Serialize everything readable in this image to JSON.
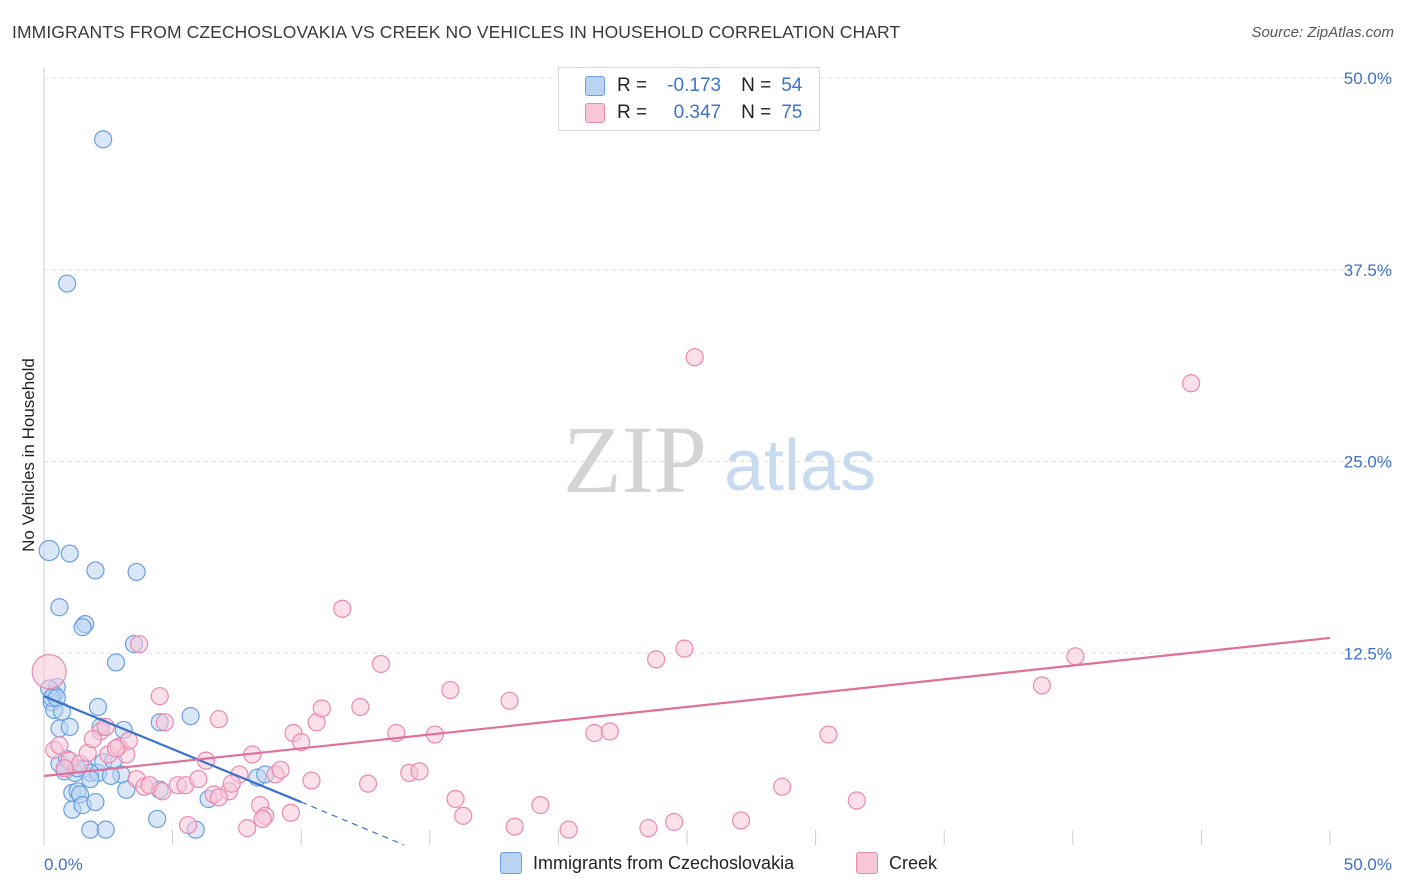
{
  "title": "IMMIGRANTS FROM CZECHOSLOVAKIA VS CREEK NO VEHICLES IN HOUSEHOLD CORRELATION CHART",
  "source": "Source: ZipAtlas.com",
  "watermark": {
    "zip": "ZIP",
    "atlas": "atlas"
  },
  "legend": {
    "r_label": "R =",
    "n_label": "N =",
    "rows": [
      {
        "r": "-0.173",
        "n": "54",
        "color": "#a9c8f0",
        "stroke": "#5b8fd6"
      },
      {
        "r": "0.347",
        "n": "75",
        "color": "#f7bcd0",
        "stroke": "#e07da0"
      }
    ]
  },
  "bottom_legend": [
    {
      "label": "Immigrants from Czechoslovakia"
    },
    {
      "label": "Creek"
    }
  ],
  "chart_data": {
    "type": "scatter",
    "title": "IMMIGRANTS FROM CZECHOSLOVAKIA VS CREEK NO VEHICLES IN HOUSEHOLD CORRELATION CHART",
    "xlabel": "",
    "ylabel": "No Vehicles in Household",
    "xlim": [
      0,
      50
    ],
    "ylim": [
      0,
      50
    ],
    "x_tick_labels": [
      "0.0%",
      "50.0%"
    ],
    "y_tick_labels": [
      "12.5%",
      "25.0%",
      "37.5%",
      "50.0%"
    ],
    "y_ticks": [
      12.5,
      25.0,
      37.5,
      50.0
    ],
    "grid": true,
    "series": [
      {
        "name": "Immigrants from Czechoslovakia",
        "color": "#6a9fe0",
        "fill": "#bad3f3",
        "trend": {
          "x": [
            0,
            10
          ],
          "y": [
            9.7,
            2.8
          ],
          "dashed_to": [
            14,
            0
          ]
        },
        "points": [
          [
            0.2,
            19.2
          ],
          [
            0.5,
            10.3
          ],
          [
            0.4,
            9.8
          ],
          [
            0.3,
            9.3
          ],
          [
            0.4,
            8.8
          ],
          [
            0.7,
            8.7
          ],
          [
            0.6,
            7.6
          ],
          [
            1.0,
            7.7
          ],
          [
            0.6,
            5.3
          ],
          [
            0.8,
            4.8
          ],
          [
            1.1,
            3.4
          ],
          [
            1.3,
            3.5
          ],
          [
            1.1,
            2.3
          ],
          [
            1.4,
            3.3
          ],
          [
            1.6,
            5.0
          ],
          [
            1.8,
            4.7
          ],
          [
            1.2,
            4.7
          ],
          [
            1.5,
            2.6
          ],
          [
            2.0,
            2.8
          ],
          [
            2.1,
            4.7
          ],
          [
            2.3,
            5.4
          ],
          [
            1.8,
            1.0
          ],
          [
            2.4,
            1.0
          ],
          [
            2.0,
            17.9
          ],
          [
            1.0,
            19.0
          ],
          [
            0.6,
            15.5
          ],
          [
            1.6,
            14.4
          ],
          [
            1.5,
            14.2
          ],
          [
            2.8,
            11.9
          ],
          [
            3.5,
            13.1
          ],
          [
            2.1,
            9.0
          ],
          [
            2.2,
            7.7
          ],
          [
            2.7,
            5.5
          ],
          [
            3.2,
            3.6
          ],
          [
            3.1,
            7.5
          ],
          [
            4.5,
            8.0
          ],
          [
            4.5,
            3.6
          ],
          [
            4.4,
            1.7
          ],
          [
            5.7,
            8.4
          ],
          [
            5.9,
            1.0
          ],
          [
            6.4,
            3.0
          ],
          [
            8.3,
            4.4
          ],
          [
            8.6,
            4.6
          ],
          [
            3.6,
            17.8
          ],
          [
            0.9,
            36.6
          ],
          [
            2.3,
            46.0
          ],
          [
            0.2,
            10.2
          ],
          [
            0.3,
            9.6
          ],
          [
            0.5,
            9.6
          ],
          [
            0.9,
            5.6
          ],
          [
            1.3,
            5.0
          ],
          [
            3.0,
            4.6
          ],
          [
            2.6,
            4.5
          ],
          [
            1.8,
            4.3
          ]
        ]
      },
      {
        "name": "Creek",
        "color": "#e98aae",
        "fill": "#f7c7d8",
        "trend": {
          "x": [
            0,
            50
          ],
          "y": [
            4.5,
            13.5
          ]
        },
        "points": [
          [
            0.2,
            11.3
          ],
          [
            0.4,
            6.2
          ],
          [
            0.6,
            6.5
          ],
          [
            1.0,
            5.5
          ],
          [
            1.4,
            5.3
          ],
          [
            1.7,
            6.0
          ],
          [
            2.2,
            7.4
          ],
          [
            2.5,
            5.9
          ],
          [
            2.9,
            6.4
          ],
          [
            3.2,
            5.9
          ],
          [
            3.6,
            4.3
          ],
          [
            3.9,
            3.8
          ],
          [
            3.3,
            6.8
          ],
          [
            4.1,
            3.9
          ],
          [
            4.5,
            9.7
          ],
          [
            4.6,
            3.5
          ],
          [
            4.7,
            8.0
          ],
          [
            5.2,
            3.9
          ],
          [
            5.5,
            3.9
          ],
          [
            6.0,
            4.3
          ],
          [
            6.3,
            5.5
          ],
          [
            6.6,
            3.3
          ],
          [
            6.8,
            8.2
          ],
          [
            7.2,
            3.5
          ],
          [
            7.6,
            4.6
          ],
          [
            7.9,
            1.1
          ],
          [
            8.1,
            5.9
          ],
          [
            8.4,
            2.6
          ],
          [
            8.6,
            1.9
          ],
          [
            9.0,
            4.6
          ],
          [
            9.2,
            4.9
          ],
          [
            9.6,
            2.1
          ],
          [
            9.7,
            7.3
          ],
          [
            10.0,
            6.7
          ],
          [
            10.4,
            4.2
          ],
          [
            10.6,
            8.0
          ],
          [
            10.8,
            8.9
          ],
          [
            11.6,
            15.4
          ],
          [
            12.3,
            9.0
          ],
          [
            12.6,
            4.0
          ],
          [
            13.1,
            11.8
          ],
          [
            13.7,
            7.3
          ],
          [
            14.2,
            4.7
          ],
          [
            14.6,
            4.8
          ],
          [
            15.2,
            7.2
          ],
          [
            15.8,
            10.1
          ],
          [
            16.0,
            3.0
          ],
          [
            16.3,
            1.9
          ],
          [
            18.1,
            9.4
          ],
          [
            18.3,
            1.2
          ],
          [
            19.3,
            2.6
          ],
          [
            20.4,
            1.0
          ],
          [
            21.4,
            7.3
          ],
          [
            22.0,
            7.4
          ],
          [
            23.5,
            1.1
          ],
          [
            23.8,
            12.1
          ],
          [
            24.5,
            1.5
          ],
          [
            24.9,
            12.8
          ],
          [
            25.3,
            31.8
          ],
          [
            27.1,
            1.6
          ],
          [
            28.7,
            3.8
          ],
          [
            30.5,
            7.2
          ],
          [
            31.6,
            2.9
          ],
          [
            38.8,
            10.4
          ],
          [
            40.1,
            12.3
          ],
          [
            44.6,
            30.1
          ],
          [
            2.8,
            6.3
          ],
          [
            3.7,
            13.1
          ],
          [
            1.9,
            6.9
          ],
          [
            0.8,
            5.0
          ],
          [
            2.4,
            7.7
          ],
          [
            5.6,
            1.3
          ],
          [
            6.8,
            3.1
          ],
          [
            7.3,
            4.0
          ],
          [
            8.5,
            1.7
          ]
        ]
      }
    ]
  }
}
